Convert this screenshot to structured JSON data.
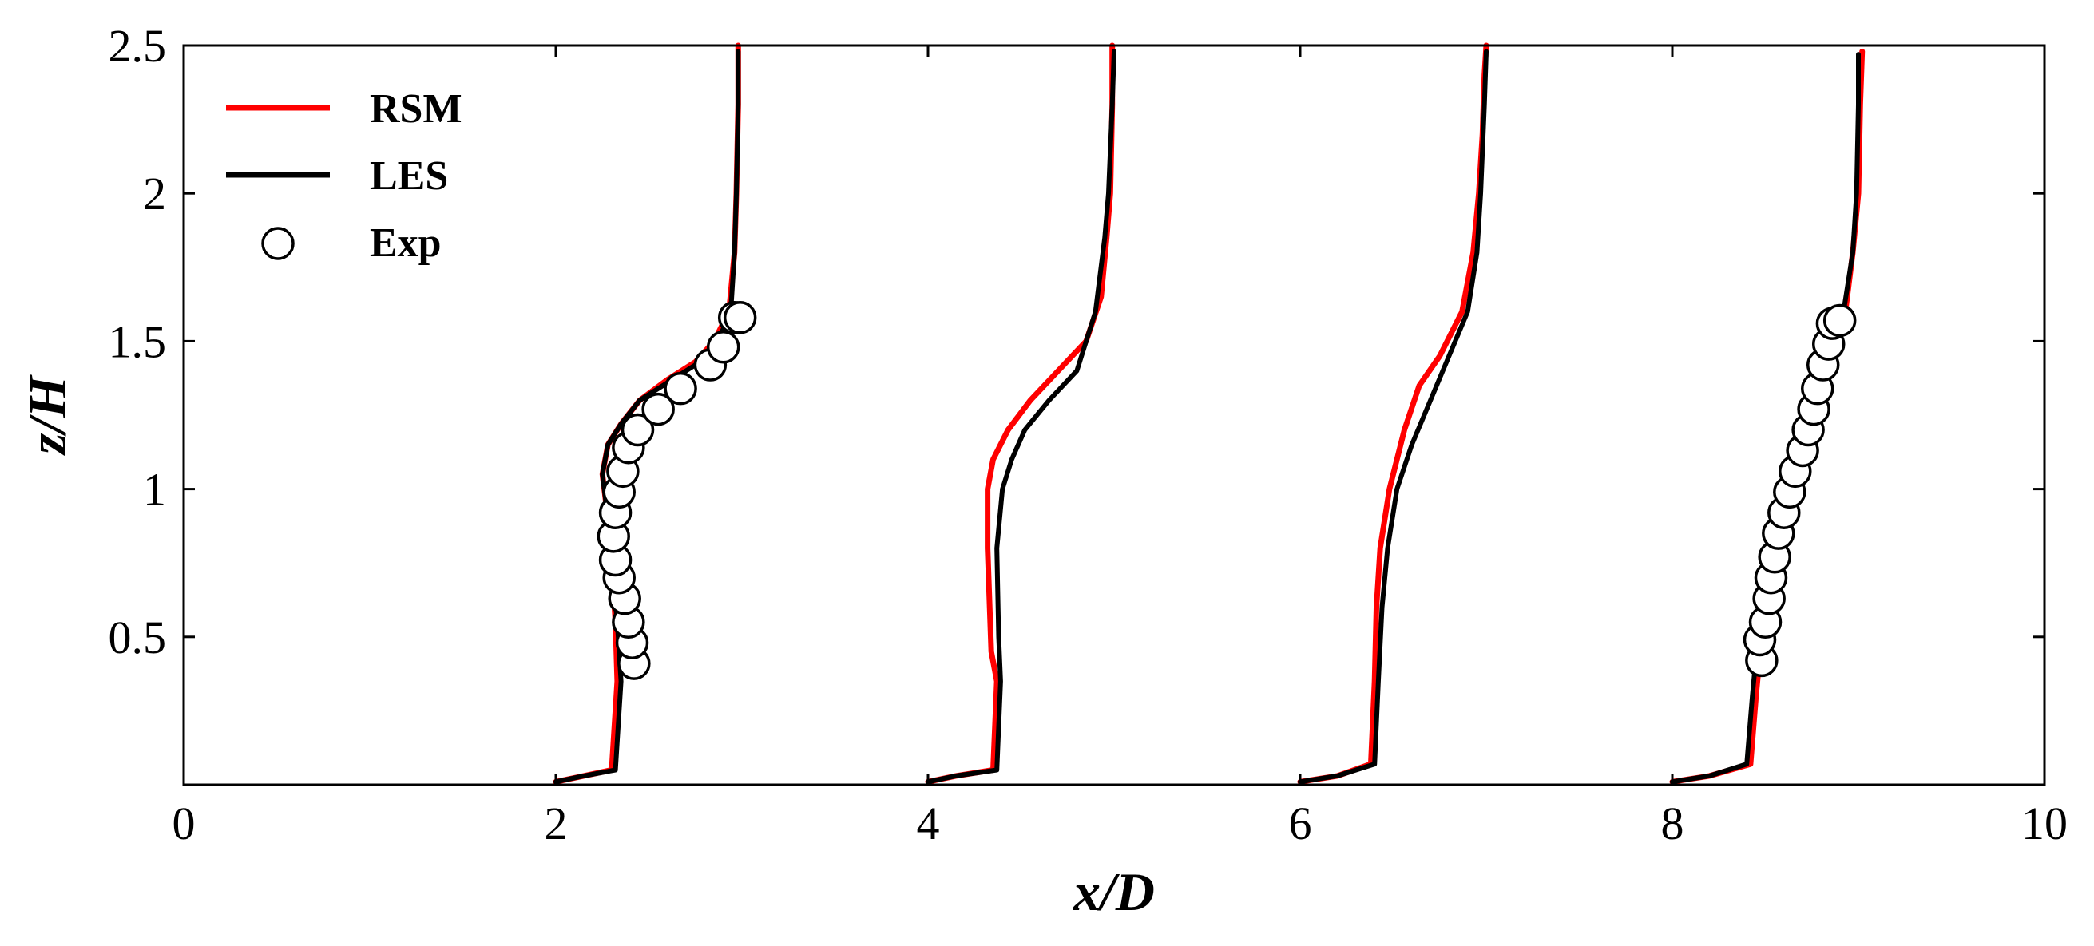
{
  "chart_data": {
    "type": "line",
    "xlabel": "x/D",
    "ylabel": "z/H",
    "xlim": [
      0,
      10
    ],
    "ylim": [
      0,
      2.5
    ],
    "x_ticks": [
      0,
      2,
      4,
      6,
      8,
      10
    ],
    "x_tick_labels": [
      "0",
      "2",
      "4",
      "6",
      "8",
      "10"
    ],
    "y_ticks": [
      0.5,
      1,
      1.5,
      2,
      2.5
    ],
    "y_tick_labels": [
      "0.5",
      "1",
      "1.5",
      "2",
      "2.5"
    ],
    "grid": false,
    "legend_position": "top-left",
    "colors": {
      "RSM": "#ff0000",
      "LES": "#000000",
      "Exp": "#ffffff"
    },
    "legend": [
      {
        "label": "RSM",
        "marker": "line",
        "color": "#ff0000"
      },
      {
        "label": "LES",
        "marker": "line",
        "color": "#000000"
      },
      {
        "label": "Exp",
        "marker": "circle",
        "color": "#000000"
      }
    ],
    "series": [
      {
        "name": "RSM",
        "profile": 1,
        "style": "line",
        "color": "#ff0000",
        "x": [
          2.0,
          2.15,
          2.3,
          2.33,
          2.32,
          2.3,
          2.27,
          2.25,
          2.28,
          2.35,
          2.45,
          2.6,
          2.75,
          2.85,
          2.93,
          2.96,
          2.97,
          2.98,
          2.98
        ],
        "y": [
          0.01,
          0.03,
          0.05,
          0.35,
          0.55,
          0.75,
          0.95,
          1.05,
          1.15,
          1.22,
          1.3,
          1.37,
          1.43,
          1.5,
          1.6,
          1.8,
          2.0,
          2.3,
          2.5
        ]
      },
      {
        "name": "LES",
        "profile": 1,
        "style": "line",
        "color": "#000000",
        "x": [
          2.0,
          2.15,
          2.32,
          2.35,
          2.33,
          2.3,
          2.27,
          2.25,
          2.28,
          2.35,
          2.45,
          2.6,
          2.75,
          2.87,
          2.94,
          2.96,
          2.97,
          2.98,
          2.98
        ],
        "y": [
          0.01,
          0.03,
          0.05,
          0.35,
          0.55,
          0.75,
          0.95,
          1.05,
          1.15,
          1.22,
          1.3,
          1.36,
          1.42,
          1.5,
          1.6,
          1.8,
          2.0,
          2.3,
          2.48
        ]
      },
      {
        "name": "Exp",
        "profile": 1,
        "style": "markers",
        "x": [
          2.42,
          2.41,
          2.39,
          2.37,
          2.34,
          2.32,
          2.31,
          2.32,
          2.34,
          2.36,
          2.39,
          2.44,
          2.55,
          2.67,
          2.83,
          2.9,
          2.96,
          2.99
        ],
        "y": [
          0.41,
          0.48,
          0.55,
          0.63,
          0.7,
          0.76,
          0.84,
          0.92,
          0.99,
          1.06,
          1.14,
          1.2,
          1.27,
          1.34,
          1.42,
          1.48,
          1.58,
          1.58
        ]
      },
      {
        "name": "RSM",
        "profile": 2,
        "style": "line",
        "color": "#ff0000",
        "x": [
          4.0,
          4.15,
          4.35,
          4.37,
          4.34,
          4.32,
          4.32,
          4.35,
          4.43,
          4.55,
          4.7,
          4.85,
          4.93,
          4.96,
          4.98,
          4.99,
          4.99
        ],
        "y": [
          0.01,
          0.03,
          0.05,
          0.35,
          0.45,
          0.8,
          1.0,
          1.1,
          1.2,
          1.3,
          1.4,
          1.5,
          1.65,
          1.85,
          2.0,
          2.3,
          2.5
        ]
      },
      {
        "name": "LES",
        "profile": 2,
        "style": "line",
        "color": "#000000",
        "x": [
          4.0,
          4.15,
          4.37,
          4.39,
          4.38,
          4.37,
          4.4,
          4.45,
          4.52,
          4.65,
          4.8,
          4.9,
          4.95,
          4.97,
          4.99,
          5.0
        ],
        "y": [
          0.01,
          0.03,
          0.05,
          0.35,
          0.5,
          0.8,
          1.0,
          1.1,
          1.2,
          1.3,
          1.4,
          1.6,
          1.85,
          2.0,
          2.3,
          2.48
        ]
      },
      {
        "name": "RSM",
        "profile": 3,
        "style": "line",
        "color": "#ff0000",
        "x": [
          6.0,
          6.2,
          6.38,
          6.4,
          6.41,
          6.43,
          6.48,
          6.56,
          6.64,
          6.75,
          6.87,
          6.93,
          6.96,
          6.98,
          6.99,
          7.0
        ],
        "y": [
          0.01,
          0.03,
          0.07,
          0.35,
          0.6,
          0.8,
          1.0,
          1.2,
          1.35,
          1.45,
          1.6,
          1.8,
          2.0,
          2.2,
          2.4,
          2.5
        ]
      },
      {
        "name": "LES",
        "profile": 3,
        "style": "line",
        "color": "#000000",
        "x": [
          6.0,
          6.2,
          6.4,
          6.42,
          6.44,
          6.47,
          6.52,
          6.6,
          6.7,
          6.8,
          6.9,
          6.95,
          6.97,
          6.99,
          7.0
        ],
        "y": [
          0.01,
          0.03,
          0.07,
          0.35,
          0.6,
          0.8,
          1.0,
          1.15,
          1.3,
          1.45,
          1.6,
          1.8,
          2.0,
          2.3,
          2.48
        ]
      },
      {
        "name": "RSM",
        "profile": 4,
        "style": "line",
        "color": "#ff0000",
        "x": [
          8.0,
          8.2,
          8.42,
          8.45,
          8.48,
          8.55,
          8.65,
          8.75,
          8.85,
          8.93,
          8.97,
          9.0,
          9.01,
          9.02
        ],
        "y": [
          0.01,
          0.03,
          0.07,
          0.3,
          0.5,
          0.75,
          1.0,
          1.2,
          1.4,
          1.6,
          1.8,
          2.0,
          2.3,
          2.48
        ]
      },
      {
        "name": "LES",
        "profile": 4,
        "style": "line",
        "color": "#000000",
        "x": [
          8.0,
          8.2,
          8.4,
          8.43,
          8.46,
          8.53,
          8.63,
          8.73,
          8.84,
          8.92,
          8.97,
          8.99,
          9.0,
          9.0
        ],
        "y": [
          0.01,
          0.03,
          0.07,
          0.3,
          0.5,
          0.75,
          1.0,
          1.2,
          1.4,
          1.6,
          1.8,
          2.0,
          2.3,
          2.47
        ]
      },
      {
        "name": "Exp",
        "profile": 4,
        "style": "markers",
        "x": [
          8.48,
          8.47,
          8.5,
          8.52,
          8.53,
          8.55,
          8.57,
          8.6,
          8.63,
          8.66,
          8.7,
          8.73,
          8.76,
          8.78,
          8.81,
          8.84,
          8.86,
          8.9
        ],
        "y": [
          0.42,
          0.49,
          0.55,
          0.63,
          0.7,
          0.77,
          0.85,
          0.92,
          0.99,
          1.06,
          1.13,
          1.2,
          1.27,
          1.34,
          1.42,
          1.49,
          1.56,
          1.57
        ]
      }
    ]
  }
}
